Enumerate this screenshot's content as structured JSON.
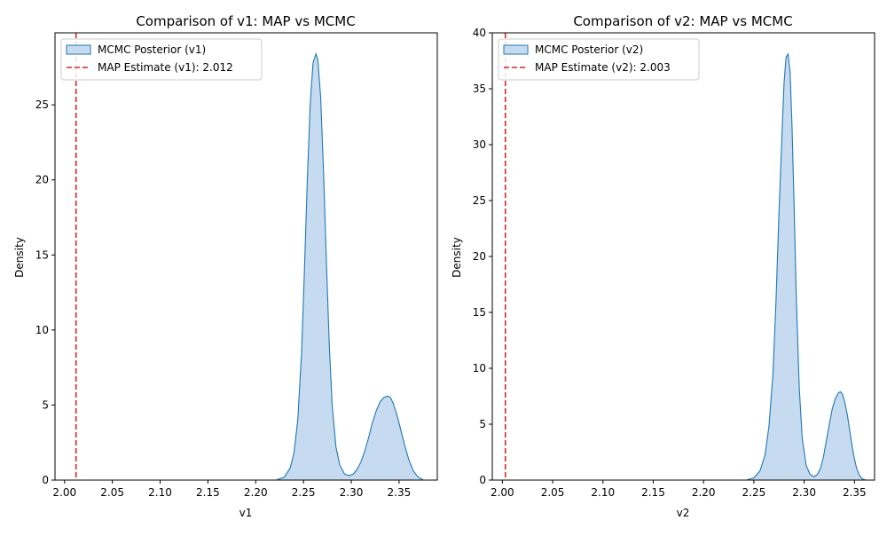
{
  "chart_data": [
    {
      "type": "area",
      "title": "Comparison of v1: MAP vs MCMC",
      "xlabel": "v1",
      "ylabel": "Density",
      "xlim": [
        1.99,
        2.39
      ],
      "ylim": [
        0,
        29.8
      ],
      "xticks": [
        "2.00",
        "2.05",
        "2.10",
        "2.15",
        "2.20",
        "2.25",
        "2.30",
        "2.35"
      ],
      "yticks": [
        "0",
        "5",
        "10",
        "15",
        "20",
        "25"
      ],
      "legend_position": "upper-left",
      "series": [
        {
          "name": "MCMC Posterior (v1)",
          "kind": "density",
          "color": "#1f77b4",
          "fill": "#c6dbef",
          "x": [
            2.222,
            2.23,
            2.236,
            2.24,
            2.244,
            2.248,
            2.251,
            2.254,
            2.257,
            2.26,
            2.263,
            2.265,
            2.268,
            2.271,
            2.274,
            2.277,
            2.28,
            2.284,
            2.288,
            2.293,
            2.298,
            2.302,
            2.306,
            2.31,
            2.314,
            2.318,
            2.322,
            2.326,
            2.33,
            2.334,
            2.338,
            2.341,
            2.344,
            2.348,
            2.352,
            2.356,
            2.36,
            2.365,
            2.37,
            2.375
          ],
          "y": [
            0.02,
            0.2,
            0.8,
            1.8,
            4.0,
            8.5,
            14.0,
            20.0,
            25.0,
            27.8,
            28.4,
            28.0,
            25.5,
            20.5,
            14.5,
            9.0,
            5.0,
            2.2,
            1.0,
            0.4,
            0.3,
            0.4,
            0.7,
            1.2,
            1.9,
            2.8,
            3.8,
            4.6,
            5.2,
            5.5,
            5.6,
            5.5,
            5.1,
            4.3,
            3.3,
            2.3,
            1.4,
            0.6,
            0.2,
            0.02
          ]
        },
        {
          "name": "MAP Estimate (v1): 2.012",
          "kind": "vline",
          "color": "#d62728",
          "x": 2.012
        }
      ]
    },
    {
      "type": "area",
      "title": "Comparison of v2: MAP vs MCMC",
      "xlabel": "v2",
      "ylabel": "Density",
      "xlim": [
        1.99,
        2.37
      ],
      "ylim": [
        0,
        40.0
      ],
      "xticks": [
        "2.00",
        "2.05",
        "2.10",
        "2.15",
        "2.20",
        "2.25",
        "2.30",
        "2.35"
      ],
      "yticks": [
        "0",
        "5",
        "10",
        "15",
        "20",
        "25",
        "30",
        "35",
        "40"
      ],
      "legend_position": "upper-left",
      "series": [
        {
          "name": "MCMC Posterior (v2)",
          "kind": "density",
          "color": "#1f77b4",
          "fill": "#c6dbef",
          "x": [
            2.243,
            2.25,
            2.256,
            2.261,
            2.265,
            2.269,
            2.272,
            2.275,
            2.278,
            2.28,
            2.282,
            2.284,
            2.286,
            2.288,
            2.29,
            2.292,
            2.295,
            2.298,
            2.302,
            2.306,
            2.31,
            2.313,
            2.316,
            2.319,
            2.322,
            2.325,
            2.328,
            2.331,
            2.334,
            2.336,
            2.338,
            2.34,
            2.343,
            2.346,
            2.349,
            2.352,
            2.355,
            2.358,
            2.361
          ],
          "y": [
            0.02,
            0.2,
            0.8,
            2.2,
            4.8,
            9.5,
            16.0,
            24.0,
            31.0,
            35.5,
            37.8,
            38.1,
            36.5,
            31.5,
            24.5,
            17.0,
            8.5,
            3.8,
            1.3,
            0.5,
            0.3,
            0.5,
            1.0,
            2.0,
            3.5,
            5.0,
            6.4,
            7.3,
            7.8,
            7.9,
            7.7,
            7.1,
            5.8,
            4.0,
            2.3,
            1.1,
            0.4,
            0.1,
            0.02
          ]
        },
        {
          "name": "MAP Estimate (v2): 2.003",
          "kind": "vline",
          "color": "#d62728",
          "x": 2.003
        }
      ]
    }
  ]
}
